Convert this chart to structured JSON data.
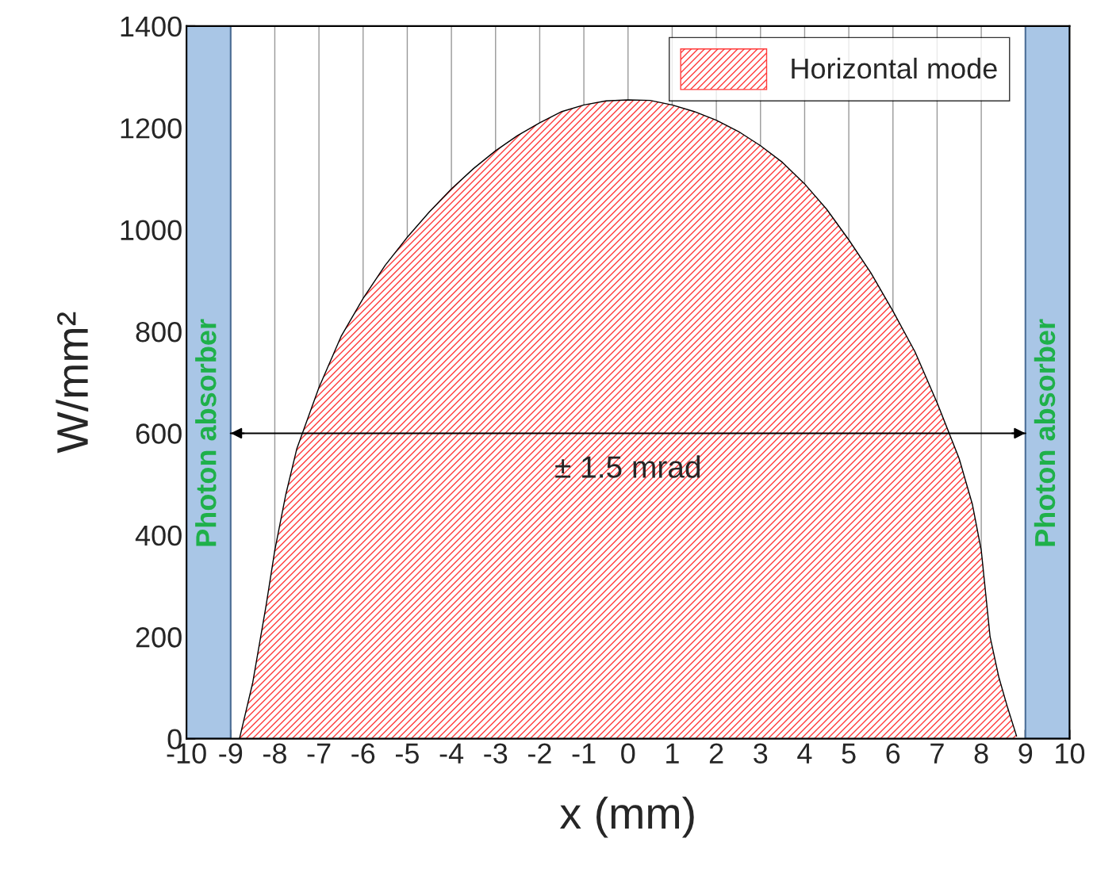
{
  "chart_data": {
    "type": "area",
    "xlabel": "x (mm)",
    "ylabel": "W/mm²",
    "series": [
      {
        "name": "Horizontal mode",
        "color": "#ff3b3b",
        "x": [
          -8.8,
          -8.5,
          -8.2,
          -8,
          -7.75,
          -7.5,
          -7,
          -6.5,
          -6,
          -5.5,
          -5,
          -4.5,
          -4,
          -3.5,
          -3,
          -2.5,
          -2,
          -1.5,
          -1,
          -0.5,
          0,
          0.5,
          1,
          1.5,
          2,
          2.5,
          3,
          3.5,
          4,
          4.5,
          5,
          5.5,
          6,
          6.5,
          7,
          7.5,
          7.8,
          8,
          8.2,
          8.4,
          8.6,
          8.8
        ],
        "values": [
          0,
          110,
          260,
          370,
          480,
          570,
          690,
          790,
          865,
          930,
          985,
          1035,
          1080,
          1120,
          1155,
          1185,
          1210,
          1232,
          1245,
          1253,
          1255,
          1254,
          1245,
          1232,
          1215,
          1193,
          1165,
          1132,
          1090,
          1040,
          980,
          915,
          840,
          760,
          660,
          550,
          460,
          370,
          200,
          120,
          60,
          5
        ]
      }
    ],
    "xlim": [
      -10,
      10
    ],
    "xticks": [
      -10,
      -9,
      -8,
      -7,
      -6,
      -5,
      -4,
      -3,
      -2,
      -1,
      0,
      1,
      2,
      3,
      4,
      5,
      6,
      7,
      8,
      9,
      10
    ],
    "ylim": [
      0,
      1400
    ],
    "yticks": [
      0,
      {
        "value": 100,
        "label": null
      },
      200,
      {
        "value": 300,
        "label": null
      },
      400,
      {
        "value": 500,
        "label": null
      },
      600,
      {
        "value": 700,
        "label": null
      },
      800,
      {
        "value": 900,
        "label": null
      },
      1000,
      {
        "value": 1100,
        "label": null
      },
      1200,
      {
        "value": 1300,
        "label": null
      },
      1400
    ],
    "grid": "x",
    "legend": "top right",
    "bands": [
      {
        "axis": "x",
        "from": -10,
        "to": -9,
        "label": "Photon absorber",
        "color": "#a9c6e6"
      },
      {
        "axis": "x",
        "from": 9,
        "to": 10,
        "label": "Photon absorber",
        "color": "#a9c6e6"
      }
    ],
    "ref_lines": [
      {
        "axis": "y",
        "value": 600,
        "label": "± 1.5 mrad",
        "color": "#000000"
      }
    ]
  }
}
